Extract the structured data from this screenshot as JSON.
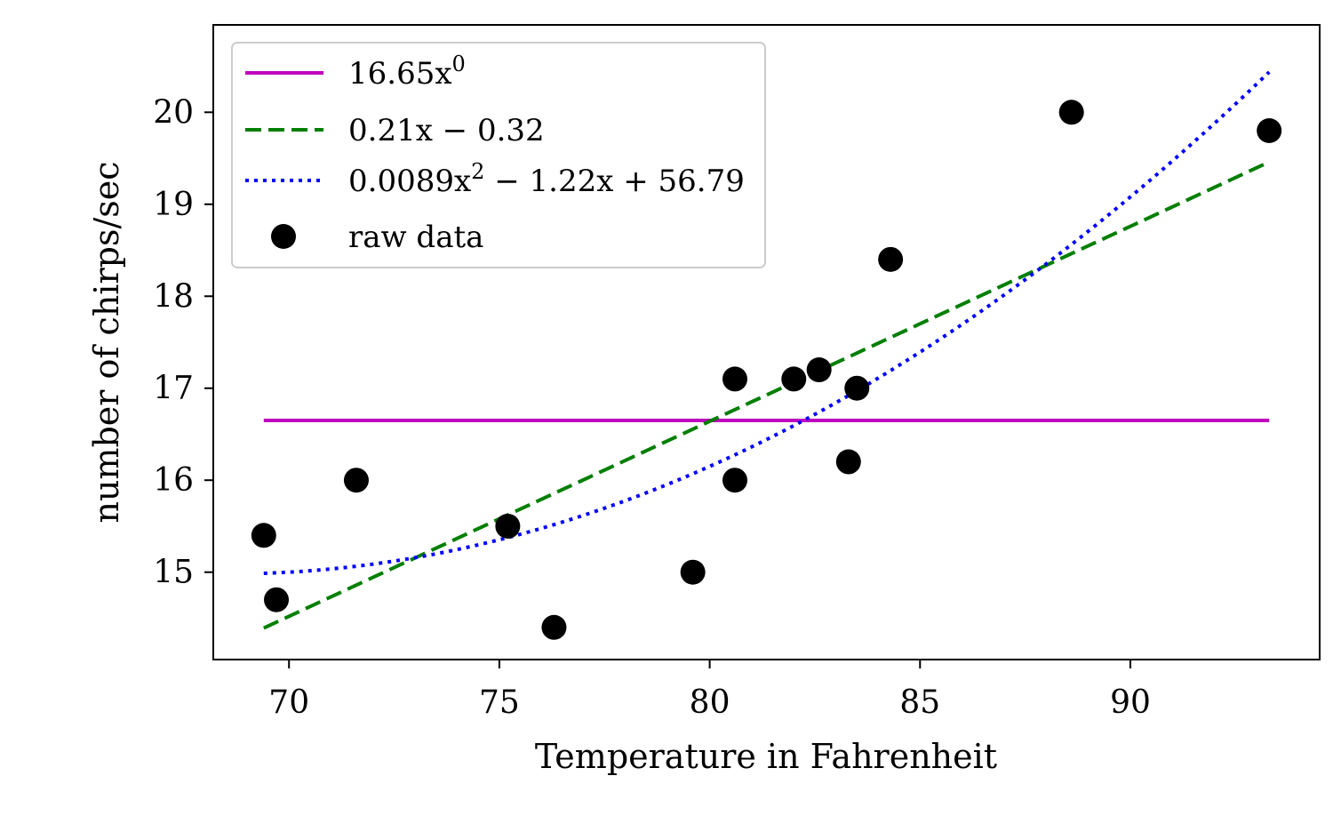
{
  "chart_data": {
    "type": "scatter",
    "xlabel": "Temperature in Fahrenheit",
    "ylabel": "number of chirps/sec",
    "xlim": [
      68.2,
      94.5
    ],
    "ylim": [
      14.05,
      20.95
    ],
    "x_ticks": [
      70,
      75,
      80,
      85,
      90
    ],
    "y_ticks": [
      15,
      16,
      17,
      18,
      19,
      20
    ],
    "grid": false,
    "legend_position": "top-left",
    "x_range": [
      69.4,
      93.3
    ],
    "series": [
      {
        "name": "16.65x^0",
        "legend_main": "16.65x",
        "legend_sup": "0",
        "legend_rest": "",
        "kind": "line",
        "style": "solid",
        "color": "#bf00bf",
        "coefficients": [
          16.65
        ]
      },
      {
        "name": "0.21x - 0.32",
        "legend_main": "0.21x − 0.32",
        "legend_sup": "",
        "legend_rest": "",
        "kind": "line",
        "style": "dashed",
        "color": "#007f00",
        "coefficients": [
          0.212,
          -0.32
        ]
      },
      {
        "name": "0.0089x^2 - 1.22x + 56.79",
        "legend_main": "0.0089x",
        "legend_sup": "2",
        "legend_rest": " − 1.22x + 56.79",
        "kind": "line",
        "style": "dotted",
        "color": "#0000ff",
        "coefficients": [
          0.0089,
          -1.22,
          56.79
        ]
      },
      {
        "name": "raw data",
        "legend_main": "raw data",
        "legend_sup": "",
        "legend_rest": "",
        "kind": "points",
        "color": "#000000",
        "x": [
          69.4,
          69.7,
          71.6,
          75.2,
          76.3,
          79.6,
          80.6,
          80.6,
          82.0,
          82.6,
          83.3,
          83.5,
          84.3,
          88.6,
          93.3
        ],
        "y": [
          15.4,
          14.7,
          16.0,
          15.5,
          14.4,
          15.0,
          17.1,
          16.0,
          17.1,
          17.2,
          16.2,
          17.0,
          18.4,
          20.0,
          19.8
        ]
      }
    ]
  }
}
